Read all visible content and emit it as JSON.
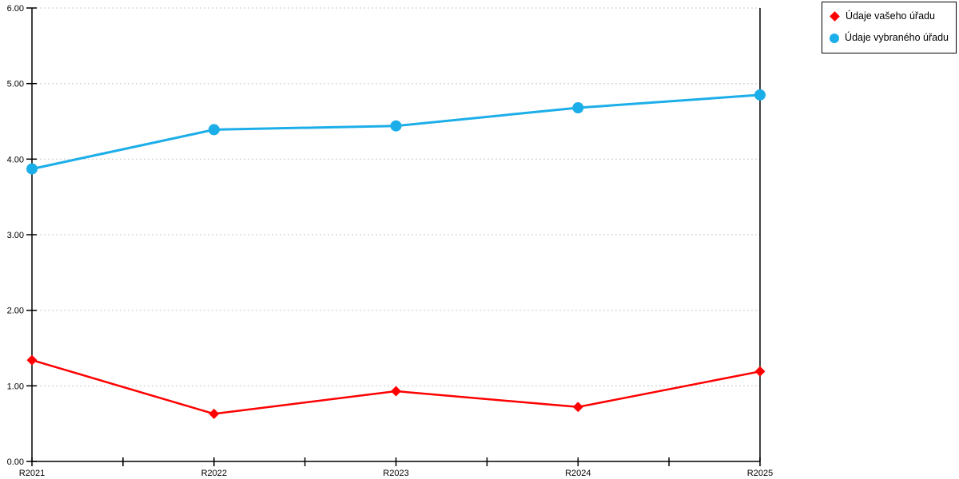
{
  "chart_data": {
    "type": "line",
    "title": "",
    "xlabel": "",
    "ylabel": "",
    "categories": [
      "R2021",
      "R2022",
      "R2023",
      "R2024",
      "R2025"
    ],
    "series": [
      {
        "name": "Údaje vašeho úřadu",
        "color": "#FF0000",
        "marker": "diamond",
        "values": [
          1.34,
          0.63,
          0.93,
          0.72,
          1.19
        ]
      },
      {
        "name": "Údaje vybraného úřadu",
        "color": "#1CAEE9",
        "marker": "circle",
        "values": [
          3.87,
          4.39,
          4.44,
          4.68,
          4.85
        ]
      }
    ],
    "ylim": [
      0,
      6
    ],
    "ytick_step": 1,
    "ytick_labels": [
      "0.00",
      "1.00",
      "2.00",
      "3.00",
      "4.00",
      "5.00",
      "6.00"
    ],
    "grid": true,
    "grid_style": "dotted",
    "grid_color": "#C8C8C8",
    "axis_color": "#000000",
    "background_color": "#FFFFFF",
    "legend_position": "outside-top-right"
  }
}
